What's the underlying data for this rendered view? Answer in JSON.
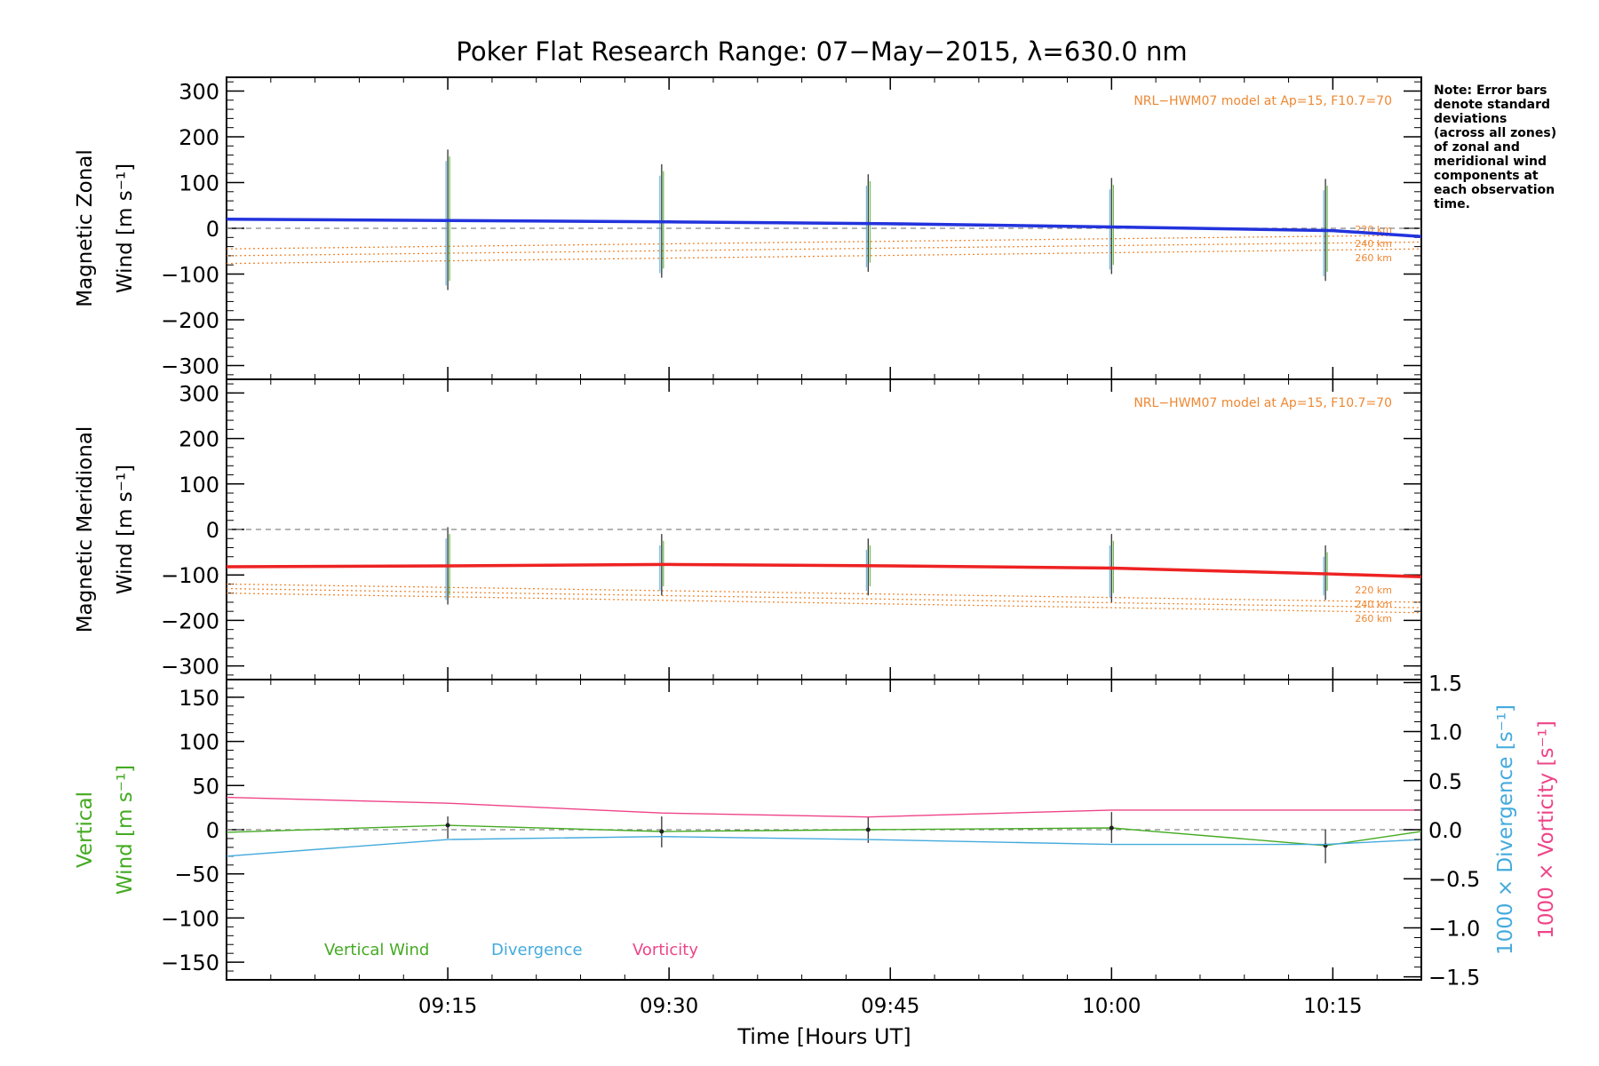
{
  "figure": {
    "title": "Poker Flat Research Range: 07−May−2015, λ=630.0 nm",
    "note_lines": [
      "Note: Error bars",
      "denote standard",
      "deviations",
      "(across all zones)",
      "of zonal and",
      "meridional wind",
      "components at",
      "each observation",
      "time."
    ],
    "xlabel": "Time [Hours UT]",
    "x_ticks": [
      "09:15",
      "09:30",
      "09:45",
      "10:00",
      "10:15"
    ],
    "colors": {
      "zonal": "#2233dd",
      "meridional": "#ee2222",
      "model": "#ee8833",
      "vertical": "#44aa22",
      "divergence": "#44aadd",
      "vorticity": "#ee4488",
      "errorbar": "#333333",
      "zero": "#888888"
    }
  },
  "chart_data": [
    {
      "type": "line",
      "panel": "zonal",
      "ylabel_line1": "Magnetic Zonal",
      "ylabel_line2": "Wind [m s⁻¹]",
      "ylim": [
        -330,
        330
      ],
      "y_ticks": [
        300,
        200,
        100,
        0,
        -100,
        -200,
        -300
      ],
      "y_tick_labels": [
        "300",
        "200",
        "100",
        "0",
        "−100",
        "−200",
        "−300"
      ],
      "xlim_min": [
        0,
        81
      ],
      "model_label": "NRL−HWM07 model at Ap=15, F10.7=70",
      "model_alt_labels": [
        "220 km",
        "240 km",
        "260 km"
      ],
      "series": [
        {
          "role": "measured",
          "x_min": [
            0,
            15,
            30,
            45,
            60,
            75,
            81
          ],
          "values": [
            20,
            17,
            14,
            10,
            3,
            -5,
            -18
          ]
        }
      ],
      "model": [
        {
          "x_min": [
            0,
            81
          ],
          "values": [
            -45,
            -15
          ]
        },
        {
          "x_min": [
            0,
            81
          ],
          "values": [
            -60,
            -30
          ]
        },
        {
          "x_min": [
            0,
            81
          ],
          "values": [
            -77,
            -45
          ]
        }
      ],
      "errorbars": [
        {
          "x_min": 15,
          "low": -135,
          "high": 172
        },
        {
          "x_min": 29.5,
          "low": -108,
          "high": 140
        },
        {
          "x_min": 43.5,
          "low": -95,
          "high": 118
        },
        {
          "x_min": 60,
          "low": -100,
          "high": 110
        },
        {
          "x_min": 74.5,
          "low": -115,
          "high": 108
        }
      ]
    },
    {
      "type": "line",
      "panel": "meridional",
      "ylabel_line1": "Magnetic Meridional",
      "ylabel_line2": "Wind [m s⁻¹]",
      "ylim": [
        -330,
        330
      ],
      "y_ticks": [
        300,
        200,
        100,
        0,
        -100,
        -200,
        -300
      ],
      "y_tick_labels": [
        "300",
        "200",
        "100",
        "0",
        "−100",
        "−200",
        "−300"
      ],
      "model_label": "NRL−HWM07 model at Ap=15, F10.7=70",
      "model_alt_labels": [
        "220 km",
        "240 km",
        "260 km"
      ],
      "series": [
        {
          "role": "measured",
          "x_min": [
            0,
            15,
            30,
            45,
            60,
            75,
            81
          ],
          "values": [
            -82,
            -80,
            -77,
            -80,
            -85,
            -98,
            -104
          ]
        }
      ],
      "model": [
        {
          "x_min": [
            0,
            81
          ],
          "values": [
            -120,
            -160
          ]
        },
        {
          "x_min": [
            0,
            81
          ],
          "values": [
            -130,
            -172
          ]
        },
        {
          "x_min": [
            0,
            81
          ],
          "values": [
            -140,
            -183
          ]
        }
      ],
      "errorbars": [
        {
          "x_min": 15,
          "low": -165,
          "high": 5
        },
        {
          "x_min": 29.5,
          "low": -145,
          "high": -10
        },
        {
          "x_min": 43.5,
          "low": -145,
          "high": -20
        },
        {
          "x_min": 60,
          "low": -160,
          "high": -10
        },
        {
          "x_min": 74.5,
          "low": -155,
          "high": -35
        }
      ]
    },
    {
      "type": "line",
      "panel": "vertical",
      "ylabel_line1": "Vertical",
      "ylabel_line2": "Wind [m s⁻¹]",
      "ylim": [
        -170,
        170
      ],
      "y_ticks": [
        150,
        100,
        50,
        0,
        -50,
        -100,
        -150
      ],
      "y_tick_labels": [
        "150",
        "100",
        "50",
        "0",
        "−50",
        "−100",
        "−150"
      ],
      "y2lim": [
        -1.53,
        1.53
      ],
      "y2_ticks": [
        1.5,
        1.0,
        0.5,
        0.0,
        -0.5,
        -1.0,
        -1.5
      ],
      "y2_tick_labels": [
        "1.5",
        "1.0",
        "0.5",
        "0.0",
        "−0.5",
        "−1.0",
        "−1.5"
      ],
      "y2label_divergence": "1000 × Divergence [s⁻¹]",
      "y2label_vorticity": "1000 × Vorticity [s⁻¹]",
      "legend": [
        "Vertical Wind",
        "Divergence",
        "Vorticity"
      ],
      "series": [
        {
          "role": "vertical",
          "axis": "left",
          "x_min": [
            0,
            15,
            29.5,
            43.5,
            60,
            74.5,
            81
          ],
          "values": [
            -3,
            5,
            -2,
            0,
            2,
            -18,
            -2
          ]
        },
        {
          "role": "divergence",
          "axis": "right",
          "x_min": [
            0,
            15,
            29.5,
            43.5,
            60,
            74.5,
            81
          ],
          "values": [
            -0.27,
            -0.1,
            -0.07,
            -0.1,
            -0.15,
            -0.15,
            -0.1
          ]
        },
        {
          "role": "vorticity",
          "axis": "right",
          "x_min": [
            0,
            15,
            29.5,
            43.5,
            60,
            74.5,
            81
          ],
          "values": [
            0.33,
            0.27,
            0.17,
            0.13,
            0.2,
            0.2,
            0.2
          ]
        }
      ],
      "errorbars": [
        {
          "x_min": 15,
          "low": -10,
          "high": 15
        },
        {
          "x_min": 29.5,
          "low": -20,
          "high": 15
        },
        {
          "x_min": 43.5,
          "low": -15,
          "high": 15
        },
        {
          "x_min": 60,
          "low": -15,
          "high": 20
        },
        {
          "x_min": 74.5,
          "low": -38,
          "high": 0
        }
      ]
    }
  ]
}
